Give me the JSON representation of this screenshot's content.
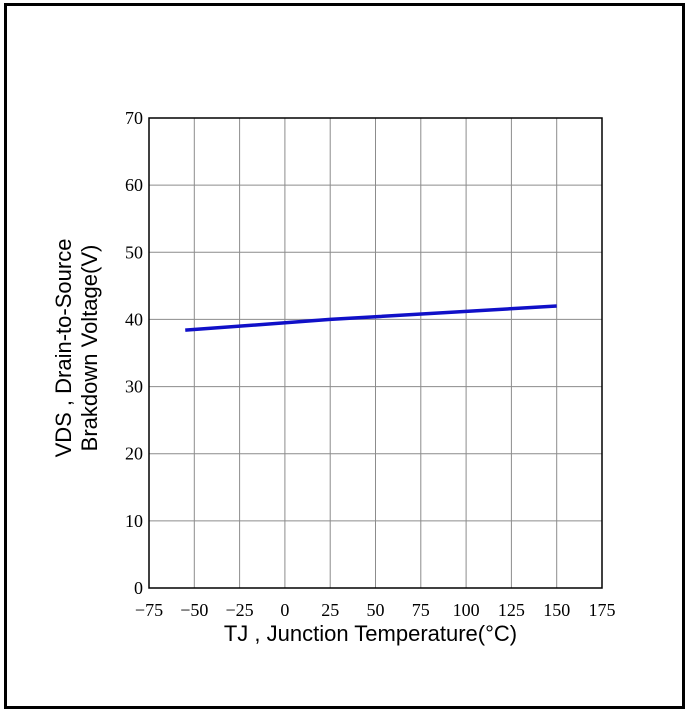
{
  "chart_data": {
    "type": "line",
    "title": "",
    "xlabel": "TJ , Junction Temperature(°C)",
    "ylabel_line1": "VDS , Drain-to-Source",
    "ylabel_line2": "Brakdown Voltage(V)",
    "xlim": [
      -75,
      175
    ],
    "ylim": [
      0,
      70
    ],
    "x_ticks": [
      -75,
      -50,
      -25,
      0,
      25,
      50,
      75,
      100,
      125,
      150,
      175
    ],
    "x_tick_labels": [
      "−75",
      "−50",
      "−25",
      "0",
      "25",
      "50",
      "75",
      "100",
      "125",
      "150",
      "175"
    ],
    "y_ticks": [
      0,
      10,
      20,
      30,
      40,
      50,
      60,
      70
    ],
    "y_tick_labels": [
      "0",
      "10",
      "20",
      "30",
      "40",
      "50",
      "60",
      "70"
    ],
    "grid": true,
    "series": [
      {
        "color": "#1010c8",
        "points": [
          {
            "x": -55,
            "y": 38.4
          },
          {
            "x": 25,
            "y": 40.0
          },
          {
            "x": 150,
            "y": 42.0
          }
        ]
      }
    ]
  }
}
